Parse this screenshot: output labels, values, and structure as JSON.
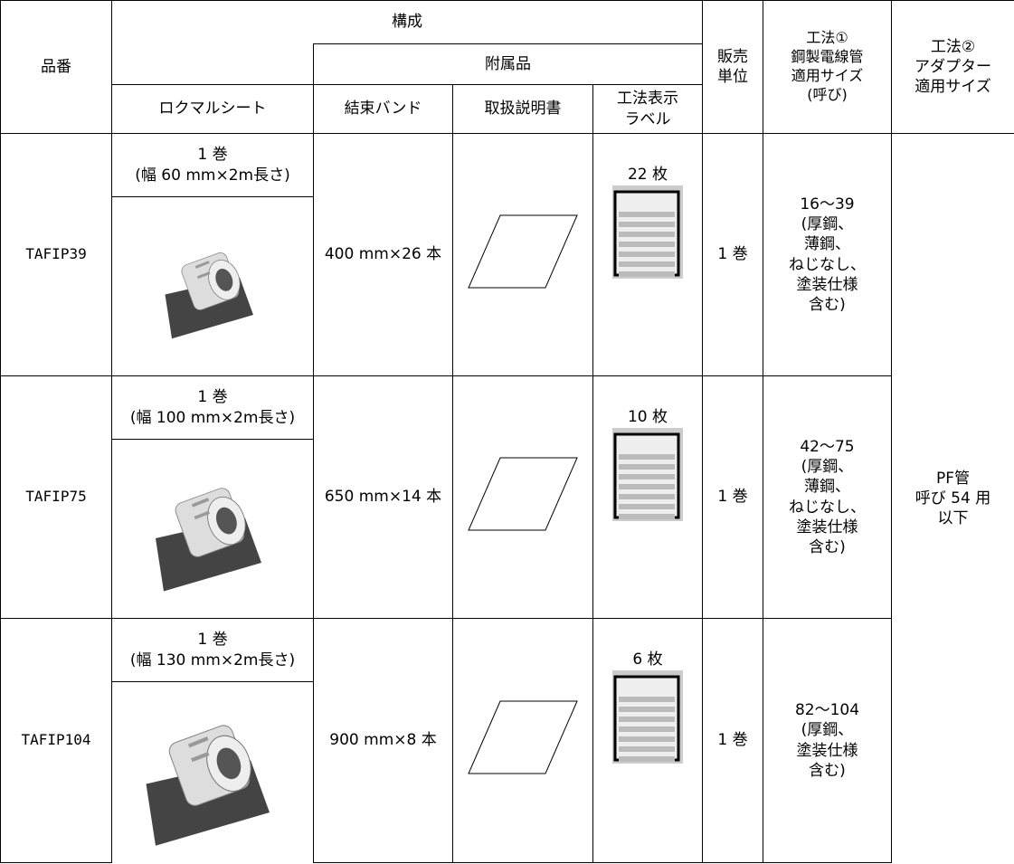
{
  "header": {
    "part_no": "品番",
    "composition": "構成",
    "accessories": "附属品",
    "sheet": "ロクマルシート",
    "band": "結束バンド",
    "manual": "取扱説明書",
    "label": "工法表示\nラベル",
    "unit": "販売\n単位",
    "method1": "工法①\n鋼製電線管\n適用サイズ\n(呼び)",
    "method2": "工法②\nアダプター\n適用サイズ"
  },
  "rows": [
    {
      "part_no": "TAFIP39",
      "sheet": "1 巻\n(幅 60 mm×2m長さ)",
      "band": "400 mm×26 本",
      "label_qty": "22 枚",
      "unit": "1 巻",
      "method1": "16～39\n(厚鋼、\n薄鋼、\nねじなし、\n塗装仕様\n含む)"
    },
    {
      "part_no": "TAFIP75",
      "sheet": "1 巻\n(幅 100 mm×2m長さ)",
      "band": "650 mm×14 本",
      "label_qty": "10 枚",
      "unit": "1 巻",
      "method1": "42～75\n(厚鋼、\n薄鋼、\nねじなし、\n塗装仕様\n含む)"
    },
    {
      "part_no": "TAFIP104",
      "sheet": "1 巻\n(幅 130 mm×2m長さ)",
      "band": "900 mm×8 本",
      "label_qty": "6 枚",
      "unit": "1 巻",
      "method1": "82～104\n(厚鋼、\n塗装仕様\n含む)"
    }
  ],
  "method2": "PF管\n呼び 54 用\n以下"
}
